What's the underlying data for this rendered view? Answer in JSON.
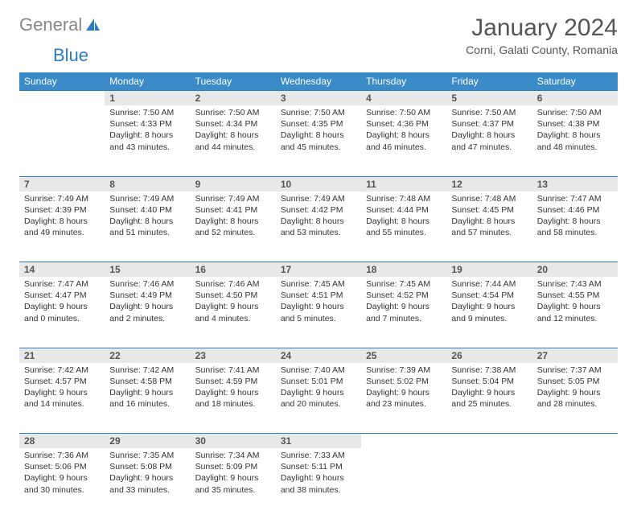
{
  "logo": {
    "part1": "General",
    "part2": "Blue"
  },
  "title": "January 2024",
  "location": "Corni, Galati County, Romania",
  "colors": {
    "header_bg": "#3b8bc9",
    "header_text": "#ffffff",
    "daynum_bg": "#e8e8e8",
    "rule": "#2d7bc0",
    "body_text": "#333333",
    "logo_gray": "#888888",
    "logo_blue": "#2d7bc0"
  },
  "day_headers": [
    "Sunday",
    "Monday",
    "Tuesday",
    "Wednesday",
    "Thursday",
    "Friday",
    "Saturday"
  ],
  "weeks": [
    {
      "nums": [
        "",
        "1",
        "2",
        "3",
        "4",
        "5",
        "6"
      ],
      "cells": [
        {},
        {
          "sunrise": "7:50 AM",
          "sunset": "4:33 PM",
          "dl1": "Daylight: 8 hours",
          "dl2": "and 43 minutes."
        },
        {
          "sunrise": "7:50 AM",
          "sunset": "4:34 PM",
          "dl1": "Daylight: 8 hours",
          "dl2": "and 44 minutes."
        },
        {
          "sunrise": "7:50 AM",
          "sunset": "4:35 PM",
          "dl1": "Daylight: 8 hours",
          "dl2": "and 45 minutes."
        },
        {
          "sunrise": "7:50 AM",
          "sunset": "4:36 PM",
          "dl1": "Daylight: 8 hours",
          "dl2": "and 46 minutes."
        },
        {
          "sunrise": "7:50 AM",
          "sunset": "4:37 PM",
          "dl1": "Daylight: 8 hours",
          "dl2": "and 47 minutes."
        },
        {
          "sunrise": "7:50 AM",
          "sunset": "4:38 PM",
          "dl1": "Daylight: 8 hours",
          "dl2": "and 48 minutes."
        }
      ]
    },
    {
      "nums": [
        "7",
        "8",
        "9",
        "10",
        "11",
        "12",
        "13"
      ],
      "cells": [
        {
          "sunrise": "7:49 AM",
          "sunset": "4:39 PM",
          "dl1": "Daylight: 8 hours",
          "dl2": "and 49 minutes."
        },
        {
          "sunrise": "7:49 AM",
          "sunset": "4:40 PM",
          "dl1": "Daylight: 8 hours",
          "dl2": "and 51 minutes."
        },
        {
          "sunrise": "7:49 AM",
          "sunset": "4:41 PM",
          "dl1": "Daylight: 8 hours",
          "dl2": "and 52 minutes."
        },
        {
          "sunrise": "7:49 AM",
          "sunset": "4:42 PM",
          "dl1": "Daylight: 8 hours",
          "dl2": "and 53 minutes."
        },
        {
          "sunrise": "7:48 AM",
          "sunset": "4:44 PM",
          "dl1": "Daylight: 8 hours",
          "dl2": "and 55 minutes."
        },
        {
          "sunrise": "7:48 AM",
          "sunset": "4:45 PM",
          "dl1": "Daylight: 8 hours",
          "dl2": "and 57 minutes."
        },
        {
          "sunrise": "7:47 AM",
          "sunset": "4:46 PM",
          "dl1": "Daylight: 8 hours",
          "dl2": "and 58 minutes."
        }
      ]
    },
    {
      "nums": [
        "14",
        "15",
        "16",
        "17",
        "18",
        "19",
        "20"
      ],
      "cells": [
        {
          "sunrise": "7:47 AM",
          "sunset": "4:47 PM",
          "dl1": "Daylight: 9 hours",
          "dl2": "and 0 minutes."
        },
        {
          "sunrise": "7:46 AM",
          "sunset": "4:49 PM",
          "dl1": "Daylight: 9 hours",
          "dl2": "and 2 minutes."
        },
        {
          "sunrise": "7:46 AM",
          "sunset": "4:50 PM",
          "dl1": "Daylight: 9 hours",
          "dl2": "and 4 minutes."
        },
        {
          "sunrise": "7:45 AM",
          "sunset": "4:51 PM",
          "dl1": "Daylight: 9 hours",
          "dl2": "and 5 minutes."
        },
        {
          "sunrise": "7:45 AM",
          "sunset": "4:52 PM",
          "dl1": "Daylight: 9 hours",
          "dl2": "and 7 minutes."
        },
        {
          "sunrise": "7:44 AM",
          "sunset": "4:54 PM",
          "dl1": "Daylight: 9 hours",
          "dl2": "and 9 minutes."
        },
        {
          "sunrise": "7:43 AM",
          "sunset": "4:55 PM",
          "dl1": "Daylight: 9 hours",
          "dl2": "and 12 minutes."
        }
      ]
    },
    {
      "nums": [
        "21",
        "22",
        "23",
        "24",
        "25",
        "26",
        "27"
      ],
      "cells": [
        {
          "sunrise": "7:42 AM",
          "sunset": "4:57 PM",
          "dl1": "Daylight: 9 hours",
          "dl2": "and 14 minutes."
        },
        {
          "sunrise": "7:42 AM",
          "sunset": "4:58 PM",
          "dl1": "Daylight: 9 hours",
          "dl2": "and 16 minutes."
        },
        {
          "sunrise": "7:41 AM",
          "sunset": "4:59 PM",
          "dl1": "Daylight: 9 hours",
          "dl2": "and 18 minutes."
        },
        {
          "sunrise": "7:40 AM",
          "sunset": "5:01 PM",
          "dl1": "Daylight: 9 hours",
          "dl2": "and 20 minutes."
        },
        {
          "sunrise": "7:39 AM",
          "sunset": "5:02 PM",
          "dl1": "Daylight: 9 hours",
          "dl2": "and 23 minutes."
        },
        {
          "sunrise": "7:38 AM",
          "sunset": "5:04 PM",
          "dl1": "Daylight: 9 hours",
          "dl2": "and 25 minutes."
        },
        {
          "sunrise": "7:37 AM",
          "sunset": "5:05 PM",
          "dl1": "Daylight: 9 hours",
          "dl2": "and 28 minutes."
        }
      ]
    },
    {
      "nums": [
        "28",
        "29",
        "30",
        "31",
        "",
        "",
        ""
      ],
      "cells": [
        {
          "sunrise": "7:36 AM",
          "sunset": "5:06 PM",
          "dl1": "Daylight: 9 hours",
          "dl2": "and 30 minutes."
        },
        {
          "sunrise": "7:35 AM",
          "sunset": "5:08 PM",
          "dl1": "Daylight: 9 hours",
          "dl2": "and 33 minutes."
        },
        {
          "sunrise": "7:34 AM",
          "sunset": "5:09 PM",
          "dl1": "Daylight: 9 hours",
          "dl2": "and 35 minutes."
        },
        {
          "sunrise": "7:33 AM",
          "sunset": "5:11 PM",
          "dl1": "Daylight: 9 hours",
          "dl2": "and 38 minutes."
        },
        {},
        {},
        {}
      ]
    }
  ]
}
